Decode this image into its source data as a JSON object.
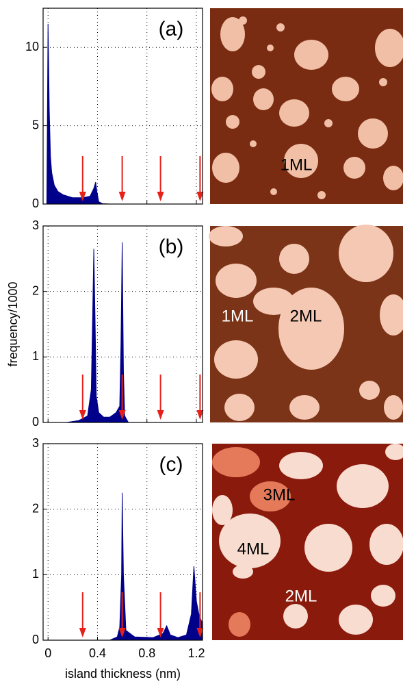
{
  "chart_data": [
    {
      "type": "area",
      "panel_label": "(a)",
      "color": "#00008b",
      "grid": true,
      "x": [
        -0.01,
        0.0,
        0.005,
        0.01,
        0.02,
        0.03,
        0.05,
        0.08,
        0.12,
        0.2,
        0.28,
        0.34,
        0.37,
        0.385,
        0.395,
        0.41,
        0.44,
        0.5,
        1.25
      ],
      "values": [
        0,
        11.5,
        9,
        6,
        3,
        2,
        1.2,
        0.8,
        0.6,
        0.4,
        0.4,
        0.5,
        1.0,
        1.4,
        0.8,
        0.15,
        0.02,
        0,
        0
      ],
      "xlim": [
        -0.04,
        1.25
      ],
      "xticks": [
        0,
        0.4,
        0.8,
        1.2
      ],
      "show_xtick_labels": false,
      "ylim": [
        0,
        12.5
      ],
      "yticks": [
        0,
        5,
        10
      ],
      "arrows": [
        0.28,
        0.6,
        0.91,
        1.23
      ],
      "arrow_color": "#e8201a",
      "image_labels": [
        "1ML"
      ]
    },
    {
      "type": "area",
      "panel_label": "(b)",
      "color": "#00008b",
      "grid": true,
      "x": [
        0.15,
        0.25,
        0.32,
        0.35,
        0.36,
        0.37,
        0.38,
        0.39,
        0.41,
        0.45,
        0.5,
        0.55,
        0.58,
        0.59,
        0.6,
        0.61,
        0.62,
        0.65,
        1.25
      ],
      "values": [
        0,
        0.03,
        0.1,
        0.5,
        1.5,
        2.65,
        1.6,
        0.4,
        0.15,
        0.08,
        0.08,
        0.15,
        0.25,
        1.2,
        2.75,
        0.8,
        0.1,
        0,
        0
      ],
      "xlim": [
        -0.04,
        1.25
      ],
      "xticks": [
        0,
        0.4,
        0.8,
        1.2
      ],
      "show_xtick_labels": false,
      "ylim": [
        0,
        3
      ],
      "yticks": [
        0,
        1,
        2,
        3
      ],
      "ylabel": "frequency/1000",
      "arrows": [
        0.28,
        0.6,
        0.91,
        1.23
      ],
      "arrow_color": "#e8201a",
      "image_labels": [
        "1ML",
        "2ML"
      ]
    },
    {
      "type": "area",
      "panel_label": "(c)",
      "color": "#00008b",
      "grid": true,
      "x": [
        0.5,
        0.56,
        0.58,
        0.595,
        0.6,
        0.61,
        0.63,
        0.7,
        0.85,
        0.93,
        0.96,
        0.99,
        1.05,
        1.12,
        1.16,
        1.18,
        1.2,
        1.22,
        1.25
      ],
      "values": [
        0,
        0.05,
        0.2,
        1.0,
        2.25,
        1.0,
        0.15,
        0.05,
        0.04,
        0.1,
        0.22,
        0.08,
        0.04,
        0.08,
        0.4,
        1.13,
        0.6,
        0.4,
        0.25
      ],
      "xlim": [
        -0.04,
        1.25
      ],
      "xticks": [
        0,
        0.4,
        0.8,
        1.2
      ],
      "show_xtick_labels": true,
      "ylim": [
        0,
        3
      ],
      "yticks": [
        0,
        1,
        2,
        3
      ],
      "xlabel": "island thickness (nm)",
      "arrows": [
        0.28,
        0.6,
        0.91,
        1.23
      ],
      "arrow_color": "#e8201a",
      "image_labels": [
        "3ML",
        "4ML",
        "2ML"
      ]
    }
  ]
}
